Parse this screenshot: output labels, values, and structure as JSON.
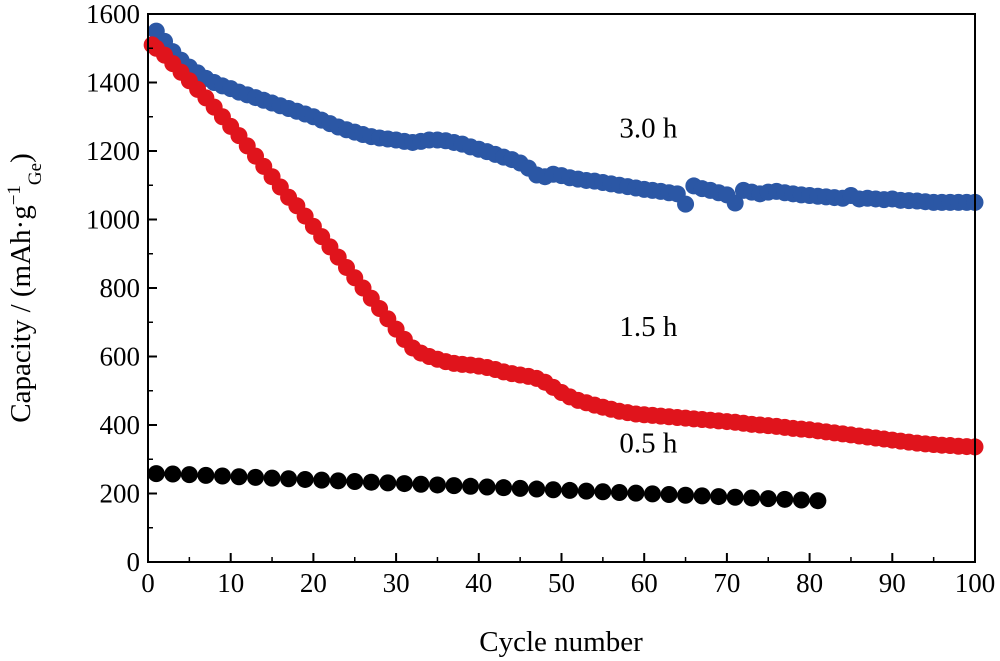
{
  "chart_data": {
    "type": "scatter",
    "title": "",
    "xlabel": "Cycle number",
    "ylabel": {
      "main": "Capacity / (mAh·g",
      "sup": "−1",
      "sub": "Ge",
      "close": ")"
    },
    "xlim": [
      0,
      100
    ],
    "ylim": [
      0,
      1600
    ],
    "xticks": [
      0,
      10,
      20,
      30,
      40,
      50,
      60,
      70,
      80,
      90,
      100
    ],
    "yticks": [
      0,
      200,
      400,
      600,
      800,
      1000,
      1200,
      1400,
      1600
    ],
    "grid": false,
    "legend": "none",
    "series": [
      {
        "name": "3.0 h",
        "color": "#2b57a5",
        "points": [
          [
            1,
            1550
          ],
          [
            2,
            1520
          ],
          [
            3,
            1490
          ],
          [
            4,
            1465
          ],
          [
            5,
            1445
          ],
          [
            6,
            1428
          ],
          [
            7,
            1412
          ],
          [
            8,
            1400
          ],
          [
            9,
            1390
          ],
          [
            10,
            1382
          ],
          [
            11,
            1372
          ],
          [
            12,
            1364
          ],
          [
            13,
            1356
          ],
          [
            14,
            1348
          ],
          [
            15,
            1340
          ],
          [
            16,
            1332
          ],
          [
            17,
            1324
          ],
          [
            18,
            1316
          ],
          [
            19,
            1308
          ],
          [
            20,
            1300
          ],
          [
            21,
            1290
          ],
          [
            22,
            1280
          ],
          [
            23,
            1270
          ],
          [
            24,
            1262
          ],
          [
            25,
            1255
          ],
          [
            26,
            1248
          ],
          [
            27,
            1242
          ],
          [
            28,
            1238
          ],
          [
            29,
            1235
          ],
          [
            30,
            1232
          ],
          [
            31,
            1228
          ],
          [
            32,
            1225
          ],
          [
            33,
            1228
          ],
          [
            34,
            1232
          ],
          [
            35,
            1232
          ],
          [
            36,
            1230
          ],
          [
            37,
            1225
          ],
          [
            38,
            1220
          ],
          [
            39,
            1212
          ],
          [
            40,
            1205
          ],
          [
            41,
            1198
          ],
          [
            42,
            1190
          ],
          [
            43,
            1182
          ],
          [
            44,
            1175
          ],
          [
            45,
            1165
          ],
          [
            46,
            1150
          ],
          [
            47,
            1130
          ],
          [
            48,
            1125
          ],
          [
            49,
            1132
          ],
          [
            50,
            1128
          ],
          [
            51,
            1122
          ],
          [
            52,
            1118
          ],
          [
            53,
            1114
          ],
          [
            54,
            1112
          ],
          [
            55,
            1108
          ],
          [
            56,
            1104
          ],
          [
            57,
            1100
          ],
          [
            58,
            1096
          ],
          [
            59,
            1092
          ],
          [
            60,
            1088
          ],
          [
            61,
            1085
          ],
          [
            62,
            1082
          ],
          [
            63,
            1078
          ],
          [
            64,
            1075
          ],
          [
            65,
            1045
          ],
          [
            66,
            1098
          ],
          [
            67,
            1090
          ],
          [
            68,
            1085
          ],
          [
            69,
            1078
          ],
          [
            70,
            1072
          ],
          [
            71,
            1048
          ],
          [
            72,
            1085
          ],
          [
            73,
            1080
          ],
          [
            74,
            1075
          ],
          [
            75,
            1080
          ],
          [
            76,
            1082
          ],
          [
            77,
            1078
          ],
          [
            78,
            1075
          ],
          [
            79,
            1072
          ],
          [
            80,
            1070
          ],
          [
            81,
            1068
          ],
          [
            82,
            1066
          ],
          [
            83,
            1064
          ],
          [
            84,
            1062
          ],
          [
            85,
            1070
          ],
          [
            86,
            1060
          ],
          [
            87,
            1062
          ],
          [
            88,
            1060
          ],
          [
            89,
            1058
          ],
          [
            90,
            1060
          ],
          [
            91,
            1056
          ],
          [
            92,
            1055
          ],
          [
            93,
            1054
          ],
          [
            94,
            1052
          ],
          [
            95,
            1050
          ],
          [
            96,
            1050
          ],
          [
            97,
            1050
          ],
          [
            98,
            1050
          ],
          [
            99,
            1050
          ],
          [
            100,
            1050
          ]
        ]
      },
      {
        "name": "1.5 h",
        "color": "#e0141c",
        "points": [
          [
            0.5,
            1510
          ],
          [
            1,
            1500
          ],
          [
            2,
            1480
          ],
          [
            3,
            1455
          ],
          [
            4,
            1430
          ],
          [
            5,
            1405
          ],
          [
            6,
            1380
          ],
          [
            7,
            1355
          ],
          [
            8,
            1328
          ],
          [
            9,
            1300
          ],
          [
            10,
            1272
          ],
          [
            11,
            1245
          ],
          [
            12,
            1215
          ],
          [
            13,
            1185
          ],
          [
            14,
            1155
          ],
          [
            15,
            1125
          ],
          [
            16,
            1095
          ],
          [
            17,
            1065
          ],
          [
            18,
            1040
          ],
          [
            19,
            1010
          ],
          [
            20,
            980
          ],
          [
            21,
            950
          ],
          [
            22,
            920
          ],
          [
            23,
            890
          ],
          [
            24,
            860
          ],
          [
            25,
            830
          ],
          [
            26,
            800
          ],
          [
            27,
            770
          ],
          [
            28,
            740
          ],
          [
            29,
            710
          ],
          [
            30,
            680
          ],
          [
            31,
            650
          ],
          [
            32,
            625
          ],
          [
            33,
            610
          ],
          [
            34,
            600
          ],
          [
            35,
            592
          ],
          [
            36,
            585
          ],
          [
            37,
            580
          ],
          [
            38,
            577
          ],
          [
            39,
            575
          ],
          [
            40,
            572
          ],
          [
            41,
            568
          ],
          [
            42,
            562
          ],
          [
            43,
            555
          ],
          [
            44,
            550
          ],
          [
            45,
            546
          ],
          [
            46,
            542
          ],
          [
            47,
            536
          ],
          [
            48,
            525
          ],
          [
            49,
            510
          ],
          [
            50,
            495
          ],
          [
            51,
            482
          ],
          [
            52,
            472
          ],
          [
            53,
            465
          ],
          [
            54,
            458
          ],
          [
            55,
            452
          ],
          [
            56,
            446
          ],
          [
            57,
            440
          ],
          [
            58,
            436
          ],
          [
            59,
            432
          ],
          [
            60,
            430
          ],
          [
            61,
            428
          ],
          [
            62,
            426
          ],
          [
            63,
            424
          ],
          [
            64,
            422
          ],
          [
            65,
            420
          ],
          [
            66,
            418
          ],
          [
            67,
            416
          ],
          [
            68,
            414
          ],
          [
            69,
            412
          ],
          [
            70,
            410
          ],
          [
            71,
            408
          ],
          [
            72,
            405
          ],
          [
            73,
            402
          ],
          [
            74,
            400
          ],
          [
            75,
            398
          ],
          [
            76,
            396
          ],
          [
            77,
            393
          ],
          [
            78,
            390
          ],
          [
            79,
            388
          ],
          [
            80,
            386
          ],
          [
            81,
            383
          ],
          [
            82,
            380
          ],
          [
            83,
            377
          ],
          [
            84,
            374
          ],
          [
            85,
            371
          ],
          [
            86,
            368
          ],
          [
            87,
            365
          ],
          [
            88,
            362
          ],
          [
            89,
            359
          ],
          [
            90,
            356
          ],
          [
            91,
            353
          ],
          [
            92,
            350
          ],
          [
            93,
            347
          ],
          [
            94,
            345
          ],
          [
            95,
            343
          ],
          [
            96,
            341
          ],
          [
            97,
            340
          ],
          [
            98,
            338
          ],
          [
            99,
            337
          ],
          [
            100,
            336
          ]
        ]
      },
      {
        "name": "0.5 h",
        "color": "#000000",
        "points": [
          [
            1,
            258
          ],
          [
            3,
            257
          ],
          [
            5,
            255
          ],
          [
            7,
            253
          ],
          [
            9,
            251
          ],
          [
            11,
            249
          ],
          [
            13,
            247
          ],
          [
            15,
            245
          ],
          [
            17,
            243
          ],
          [
            19,
            241
          ],
          [
            21,
            239
          ],
          [
            23,
            237
          ],
          [
            25,
            235
          ],
          [
            27,
            233
          ],
          [
            29,
            231
          ],
          [
            31,
            229
          ],
          [
            33,
            227
          ],
          [
            35,
            225
          ],
          [
            37,
            223
          ],
          [
            39,
            221
          ],
          [
            41,
            219
          ],
          [
            43,
            217
          ],
          [
            45,
            215
          ],
          [
            47,
            213
          ],
          [
            49,
            211
          ],
          [
            51,
            209
          ],
          [
            53,
            207
          ],
          [
            55,
            205
          ],
          [
            57,
            203
          ],
          [
            59,
            201
          ],
          [
            61,
            199
          ],
          [
            63,
            197
          ],
          [
            65,
            195
          ],
          [
            67,
            193
          ],
          [
            69,
            191
          ],
          [
            71,
            189
          ],
          [
            73,
            187
          ],
          [
            75,
            185
          ],
          [
            77,
            183
          ],
          [
            79,
            181
          ],
          [
            81,
            179
          ]
        ]
      }
    ],
    "annotations": [
      {
        "text": "3.0 h",
        "x": 57,
        "y": 1240
      },
      {
        "text": "1.5 h",
        "x": 57,
        "y": 660
      },
      {
        "text": "0.5 h",
        "x": 57,
        "y": 320
      }
    ]
  }
}
